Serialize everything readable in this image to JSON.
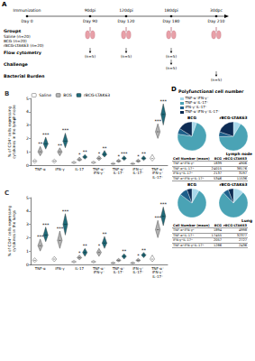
{
  "diagram": {
    "label": "A",
    "start": {
      "top": "Immunization",
      "bottom": "Day 0"
    },
    "timepoints": [
      {
        "top": "90dpi",
        "bottom": "Day 90"
      },
      {
        "top": "120dpi",
        "bottom": "Day 120"
      },
      {
        "top": "180dpi",
        "bottom": "Day 180"
      },
      {
        "top": "30dpc",
        "bottom": "Day 210"
      }
    ],
    "groups": {
      "title": "Groups",
      "items": [
        "Saline (n=20)",
        "BCG (n=20)",
        "rBCG-LTAK63 (n=20)"
      ]
    },
    "rows": [
      {
        "name": "Flow cytometry",
        "at": [
          "Day 90",
          "Day 120",
          "Day 180"
        ],
        "label": "(n=5)"
      },
      {
        "name": "Challenge",
        "at": [
          "Day 180"
        ],
        "label": "(n=5)"
      },
      {
        "name": "Bacterial Burden",
        "at": [
          "Day 210"
        ],
        "label": "(n=5)"
      }
    ]
  },
  "chart_data": [
    {
      "label": "B",
      "type": "violin",
      "y_label": "% of CD4⁺ cells expressing\ncytokines in the lymph node",
      "categories": [
        "TNF-α",
        "IFN-γ",
        "IL-17",
        "TNF-α⁺\nIFN-γ⁺",
        "TNF-α⁺\nIL-17⁺",
        "IFN-γ⁺\nIL-17⁺",
        "TNF-α⁺\nIFN-γ⁺\nIL-17⁺"
      ],
      "series": [
        {
          "name": "Saline",
          "color": "#ffffff",
          "values": [
            0.3,
            0.3,
            0.2,
            0.2,
            0.1,
            0.1,
            0.5
          ],
          "low": [
            0.15,
            0.15,
            0.1,
            0.1,
            0.05,
            0.05,
            0.3
          ],
          "high": [
            0.45,
            0.45,
            0.3,
            0.3,
            0.2,
            0.2,
            0.8
          ]
        },
        {
          "name": "BCG",
          "color": "#b3b3b3",
          "values": [
            1.0,
            1.0,
            0.4,
            0.5,
            0.3,
            0.3,
            2.5
          ],
          "low": [
            0.7,
            0.7,
            0.3,
            0.35,
            0.2,
            0.2,
            2.0
          ],
          "high": [
            1.4,
            1.3,
            0.6,
            0.7,
            0.45,
            0.45,
            3.1
          ],
          "significance": [
            "**",
            "**",
            "*",
            "*",
            "*",
            "*",
            "***"
          ]
        },
        {
          "name": "rBCG-LTAK63",
          "color": "#1f6b7a",
          "values": [
            1.6,
            1.8,
            0.6,
            0.8,
            0.5,
            0.5,
            3.8
          ],
          "low": [
            1.2,
            1.3,
            0.45,
            0.6,
            0.35,
            0.35,
            3.0
          ],
          "high": [
            2.1,
            2.4,
            0.8,
            1.1,
            0.7,
            0.7,
            4.6
          ],
          "significance": [
            "***",
            "***",
            "**",
            "**",
            "***",
            "**",
            "***"
          ]
        }
      ],
      "ylim": [
        0,
        5
      ],
      "yticks": [
        0,
        1,
        2,
        3,
        4,
        5
      ],
      "grid": false,
      "legend": "top"
    },
    {
      "label": "C",
      "type": "violin",
      "y_label": "% of CD4⁺ cells expressing\ncytokines in the lungs",
      "categories": [
        "TNF-α",
        "IFN-γ",
        "IL-17",
        "TNF-α⁺\nIFN-γ⁺",
        "TNF-α⁺\nIL-17⁺",
        "IFN-γ⁺\nIL-17⁺",
        "TNF-α⁺\nIFN-γ⁺\nIL-17⁺"
      ],
      "series": [
        {
          "name": "Saline",
          "color": "#ffffff",
          "values": [
            0.3,
            0.4,
            0.2,
            0.2,
            0.1,
            0.1,
            0.4
          ],
          "low": [
            0.15,
            0.2,
            0.1,
            0.1,
            0.05,
            0.05,
            0.2
          ],
          "high": [
            0.5,
            0.6,
            0.3,
            0.3,
            0.2,
            0.2,
            0.7
          ]
        },
        {
          "name": "BCG",
          "color": "#b3b3b3",
          "values": [
            1.4,
            1.8,
            0.5,
            0.9,
            0.3,
            0.3,
            2.6
          ],
          "low": [
            1.0,
            1.2,
            0.35,
            0.6,
            0.2,
            0.2,
            2.0
          ],
          "high": [
            1.9,
            2.5,
            0.7,
            1.2,
            0.45,
            0.45,
            3.3
          ],
          "significance": [
            "***",
            "***",
            "*",
            "*",
            null,
            "*",
            "***"
          ]
        },
        {
          "name": "rBCG-LTAK63",
          "color": "#1f6b7a",
          "values": [
            2.2,
            3.0,
            0.9,
            1.6,
            0.6,
            0.7,
            3.6
          ],
          "low": [
            1.7,
            2.2,
            0.6,
            1.2,
            0.4,
            0.5,
            2.9
          ],
          "high": [
            2.8,
            3.8,
            1.2,
            2.1,
            0.8,
            0.9,
            4.3
          ],
          "significance": [
            "***",
            "***",
            "**",
            "**",
            "**",
            "**",
            "***"
          ]
        }
      ],
      "ylim": [
        0,
        5
      ],
      "yticks": [
        0,
        1,
        2,
        3,
        4,
        5
      ],
      "grid": false
    },
    {
      "label": "D",
      "type": "pie",
      "title": "Polyfunctional cell number",
      "tissue": "Lymph node",
      "table_header": "Cell Number (mean)",
      "categories": [
        "TNF-α⁺IFN-γ⁺",
        "TNF-α⁺IL-17⁺",
        "IFN-γ⁺IL-17⁺",
        "TNF-α⁺IFN-γ⁺IL-17⁺"
      ],
      "colors": [
        "#a8d8ea",
        "#4aa3b5",
        "#1d5f8a",
        "#0d2c54"
      ],
      "series": [
        {
          "name": "BCG",
          "values": [
            1839,
            24015,
            2137,
            5346
          ]
        },
        {
          "name": "rBCG-LTAK63",
          "values": [
            4906,
            38176,
            3197,
            11536
          ]
        }
      ]
    },
    {
      "type": "pie",
      "tissue": "Lung",
      "table_header": "Cell Number (mean)",
      "categories": [
        "TNF-α⁺IFN-γ⁺",
        "TNF-α⁺IL-17⁺",
        "IFN-γ⁺IL-17⁺",
        "TNF-α⁺IFN-γ⁺IL-17⁺"
      ],
      "colors": [
        "#a8d8ea",
        "#4aa3b5",
        "#1d5f8a",
        "#0d2c54"
      ],
      "series": [
        {
          "name": "BCG",
          "values": [
            1894,
            17455,
            2057,
            1286
          ]
        },
        {
          "name": "rBCG-LTAK63",
          "values": [
            4998,
            32377,
            2727,
            2436
          ]
        }
      ]
    }
  ]
}
